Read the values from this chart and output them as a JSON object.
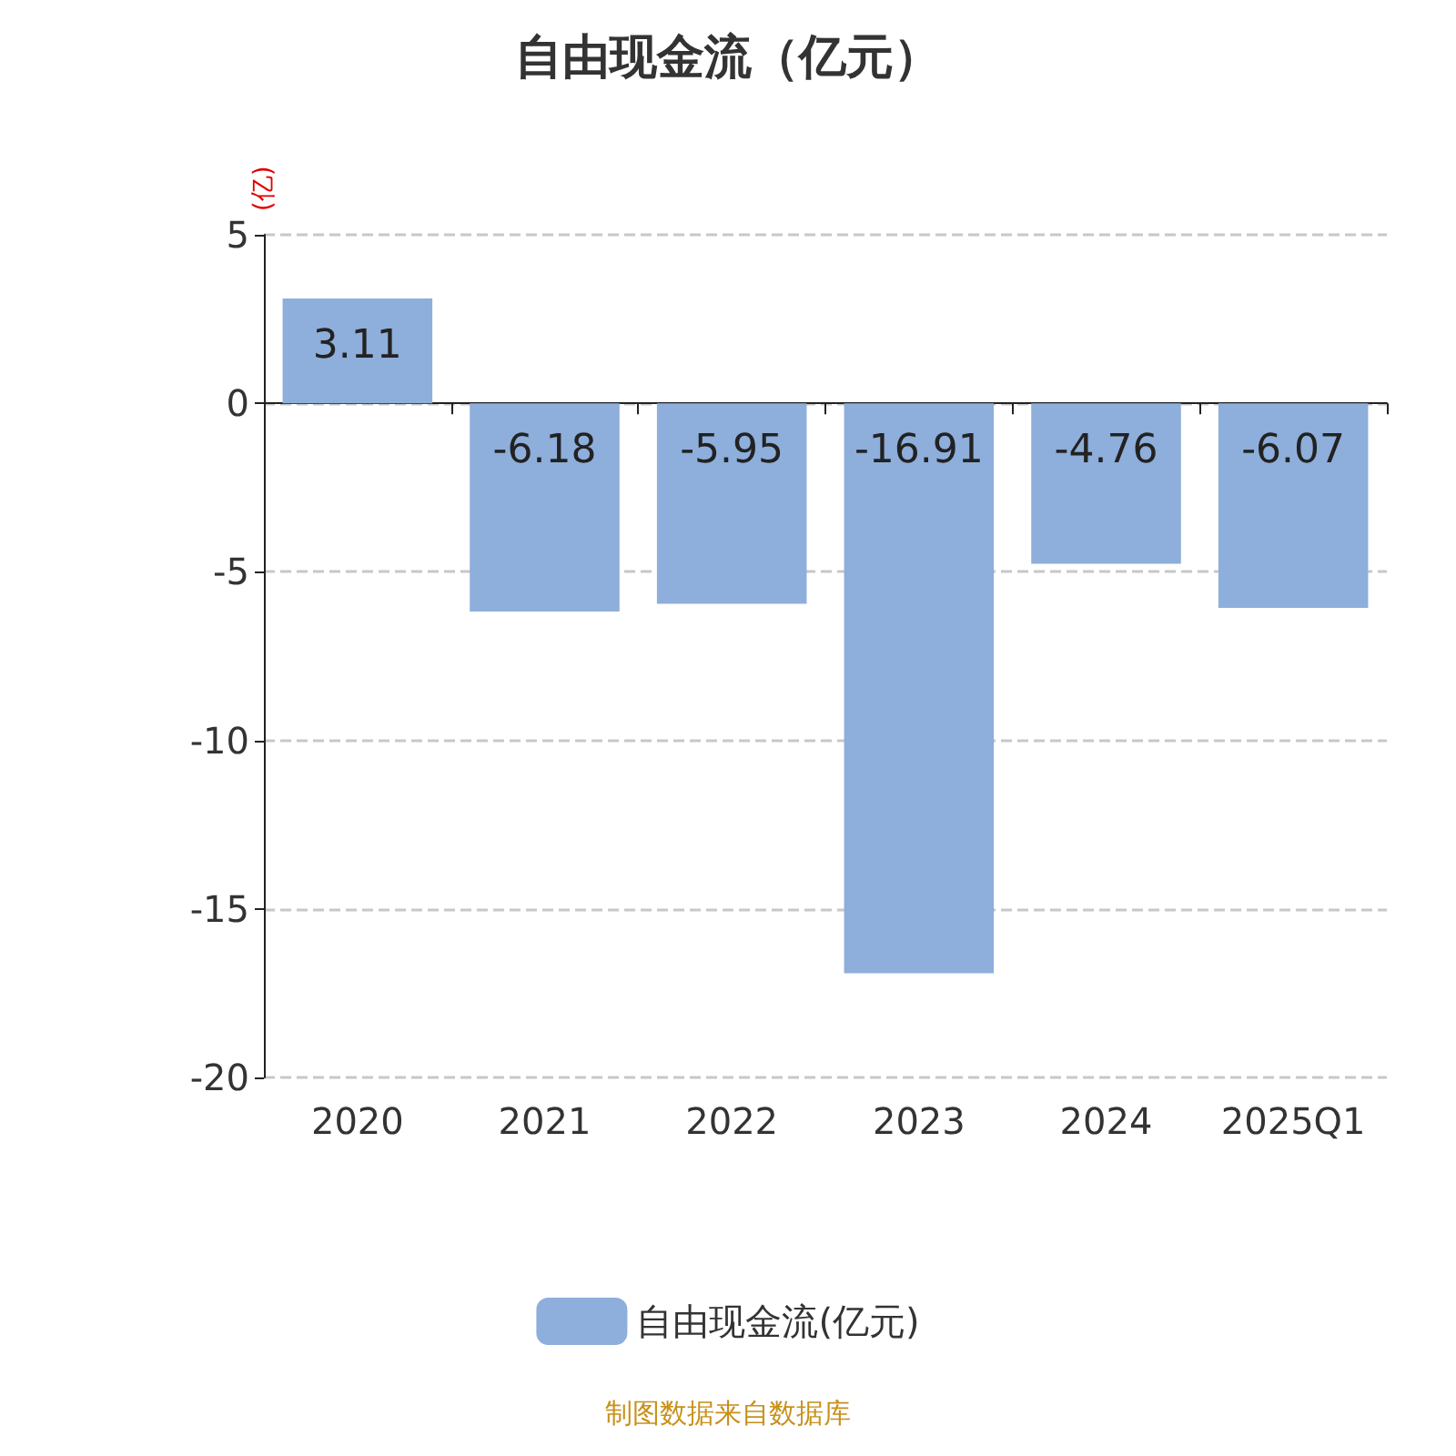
{
  "chart_data": {
    "type": "bar",
    "title": "自由现金流（亿元）",
    "ylabel": "(亿)",
    "categories": [
      "2020",
      "2021",
      "2022",
      "2023",
      "2024",
      "2025Q1"
    ],
    "series": [
      {
        "name": "自由现金流(亿元)",
        "color": "#8eaedb",
        "values": [
          3.11,
          -6.18,
          -5.95,
          -16.91,
          -4.76,
          -6.07
        ]
      }
    ],
    "ylim": [
      -20,
      5
    ],
    "yticks": [
      -20,
      -15,
      -10,
      -5,
      0,
      5
    ],
    "grid": "y",
    "legend": "bottom",
    "data_labels": true,
    "annotations": [
      "制图数据来自数据库"
    ]
  }
}
